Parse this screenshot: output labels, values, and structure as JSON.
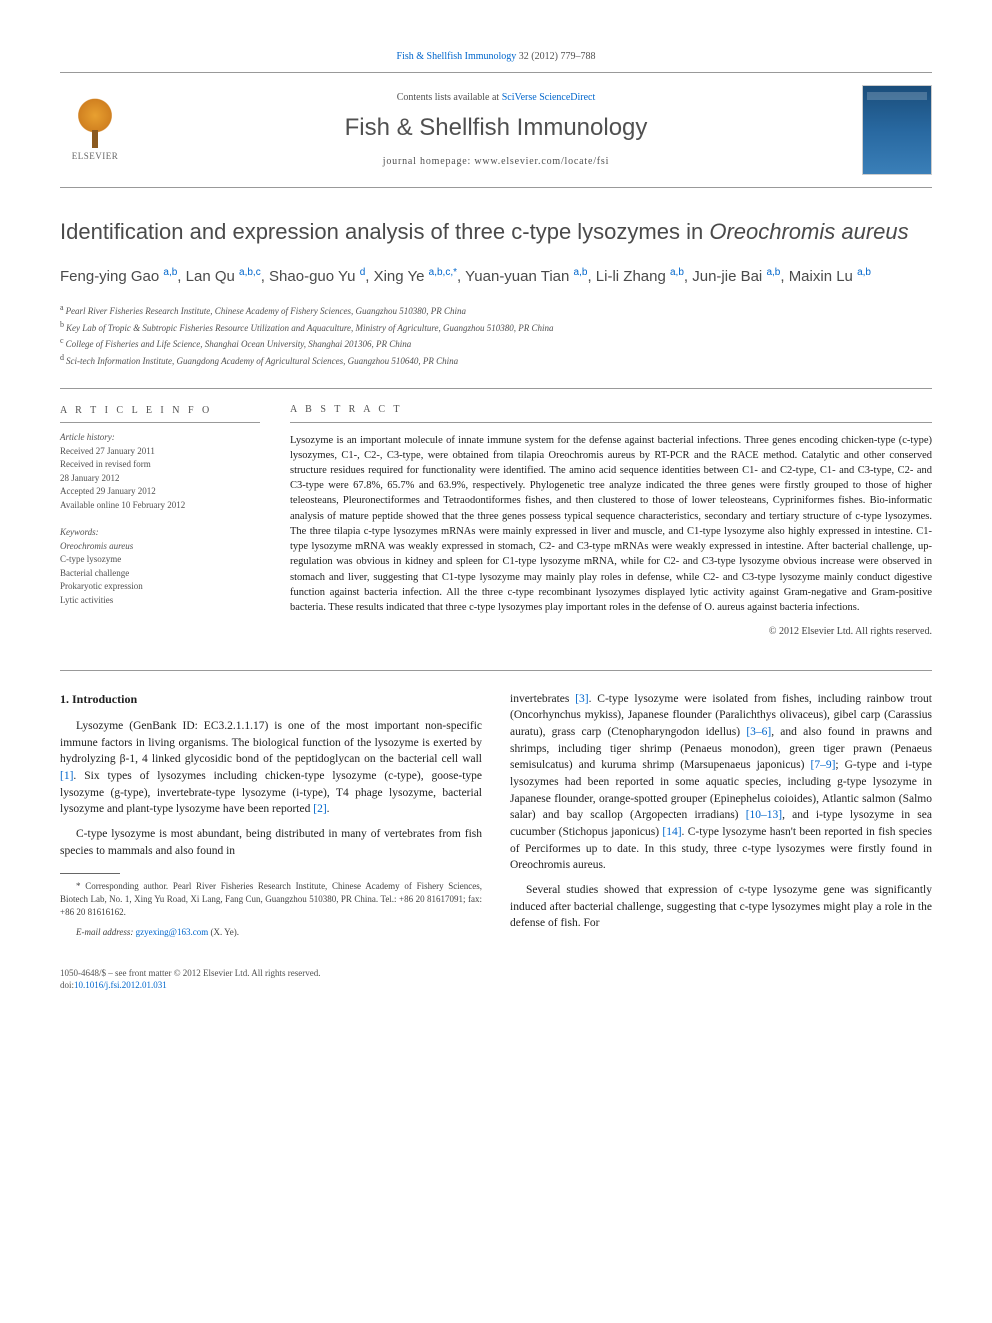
{
  "citation": {
    "journal_link": "Fish & Shellfish Immunology",
    "vol_pages": " 32 (2012) 779–788"
  },
  "header": {
    "contents_prefix": "Contents lists available at ",
    "contents_link": "SciVerse ScienceDirect",
    "journal_title": "Fish & Shellfish Immunology",
    "homepage_label": "journal homepage: www.elsevier.com/locate/fsi",
    "publisher": "ELSEVIER"
  },
  "article": {
    "title_plain": "Identification and expression analysis of three c-type lysozymes in ",
    "title_italic": "Oreochromis aureus"
  },
  "authors": [
    {
      "name": "Feng-ying Gao",
      "aff": "a,b"
    },
    {
      "name": "Lan Qu",
      "aff": "a,b,c"
    },
    {
      "name": "Shao-guo Yu",
      "aff": "d"
    },
    {
      "name": "Xing Ye",
      "aff": "a,b,c,",
      "star": true
    },
    {
      "name": "Yuan-yuan Tian",
      "aff": "a,b"
    },
    {
      "name": "Li-li Zhang",
      "aff": "a,b"
    },
    {
      "name": "Jun-jie Bai",
      "aff": "a,b"
    },
    {
      "name": "Maixin Lu",
      "aff": "a,b"
    }
  ],
  "affiliations": [
    {
      "key": "a",
      "text": "Pearl River Fisheries Research Institute, Chinese Academy of Fishery Sciences, Guangzhou 510380, PR China"
    },
    {
      "key": "b",
      "text": "Key Lab of Tropic & Subtropic Fisheries Resource Utilization and Aquaculture, Ministry of Agriculture, Guangzhou 510380, PR China"
    },
    {
      "key": "c",
      "text": "College of Fisheries and Life Science, Shanghai Ocean University, Shanghai 201306, PR China"
    },
    {
      "key": "d",
      "text": "Sci-tech Information Institute, Guangdong Academy of Agricultural Sciences, Guangzhou 510640, PR China"
    }
  ],
  "info": {
    "header": "A R T I C L E   I N F O",
    "history_label": "Article history:",
    "received": "Received 27 January 2011",
    "revised": "Received in revised form",
    "revised_date": "28 January 2012",
    "accepted": "Accepted 29 January 2012",
    "online": "Available online 10 February 2012",
    "keywords_label": "Keywords:",
    "keywords": [
      "Oreochromis aureus",
      "C-type lysozyme",
      "Bacterial challenge",
      "Prokaryotic expression",
      "Lytic activities"
    ]
  },
  "abstract": {
    "header": "A B S T R A C T",
    "text": "Lysozyme is an important molecule of innate immune system for the defense against bacterial infections. Three genes encoding chicken-type (c-type) lysozymes, C1-, C2-, C3-type, were obtained from tilapia Oreochromis aureus by RT-PCR and the RACE method. Catalytic and other conserved structure residues required for functionality were identified. The amino acid sequence identities between C1- and C2-type, C1- and C3-type, C2- and C3-type were 67.8%, 65.7% and 63.9%, respectively. Phylogenetic tree analyze indicated the three genes were firstly grouped to those of higher teleosteans, Pleuronectiformes and Tetraodontiformes fishes, and then clustered to those of lower teleosteans, Cypriniformes fishes. Bio-informatic analysis of mature peptide showed that the three genes possess typical sequence characteristics, secondary and tertiary structure of c-type lysozymes. The three tilapia c-type lysozymes mRNAs were mainly expressed in liver and muscle, and C1-type lysozyme also highly expressed in intestine. C1-type lysozyme mRNA was weakly expressed in stomach, C2- and C3-type mRNAs were weakly expressed in intestine. After bacterial challenge, up-regulation was obvious in kidney and spleen for C1-type lysozyme mRNA, while for C2- and C3-type lysozyme obvious increase were observed in stomach and liver, suggesting that C1-type lysozyme may mainly play roles in defense, while C2- and C3-type lysozyme mainly conduct digestive function against bacteria infection. All the three c-type recombinant lysozymes displayed lytic activity against Gram-negative and Gram-positive bacteria. These results indicated that three c-type lysozymes play important roles in the defense of O. aureus against bacteria infections.",
    "copyright": "© 2012 Elsevier Ltd. All rights reserved."
  },
  "body": {
    "section_title": "1. Introduction",
    "p1_a": "Lysozyme (GenBank ID: EC3.2.1.1.17) is one of the most important non-specific immune factors in living organisms. The biological function of the lysozyme is exerted by hydrolyzing β-1, 4 linked glycosidic bond of the peptidoglycan on the bacterial cell wall ",
    "p1_ref1": "[1]",
    "p1_b": ". Six types of lysozymes including chicken-type lysozyme (c-type), goose-type lysozyme (g-type), invertebrate-type lysozyme (i-type), T4 phage lysozyme, bacterial lysozyme and plant-type lysozyme have been reported ",
    "p1_ref2": "[2]",
    "p1_c": ".",
    "p2": "C-type lysozyme is most abundant, being distributed in many of vertebrates from fish species to mammals and also found in",
    "col2_a": "invertebrates ",
    "col2_ref3": "[3]",
    "col2_b": ". C-type lysozyme were isolated from fishes, including rainbow trout (Oncorhynchus mykiss), Japanese flounder (Paralichthys olivaceus), gibel carp (Carassius auratu), grass carp (Ctenopharyngodon idellus) ",
    "col2_ref36": "[3–6]",
    "col2_c": ", and also found in prawns and shrimps, including tiger shrimp (Penaeus monodon), green tiger prawn (Penaeus semisulcatus) and kuruma shrimp (Marsupenaeus japonicus) ",
    "col2_ref79": "[7–9]",
    "col2_d": "; G-type and i-type lysozymes had been reported in some aquatic species, including g-type lysozyme in Japanese flounder, orange-spotted grouper (Epinephelus coioides), Atlantic salmon (Salmo salar) and bay scallop (Argopecten irradians) ",
    "col2_ref1013": "[10–13]",
    "col2_e": ", and i-type lysozyme in sea cucumber (Stichopus japonicus) ",
    "col2_ref14": "[14]",
    "col2_f": ". C-type lysozyme hasn't been reported in fish species of Perciformes up to date. In this study, three c-type lysozymes were firstly found in Oreochromis aureus.",
    "col2_p2": "Several studies showed that expression of c-type lysozyme gene was significantly induced after bacterial challenge, suggesting that c-type lysozymes might play a role in the defense of fish. For"
  },
  "footnote": {
    "star": "*",
    "corresponding": " Corresponding author. Pearl River Fisheries Research Institute, Chinese Academy of Fishery Sciences, Biotech Lab, No. 1, Xing Yu Road, Xi Lang, Fang Cun, Guangzhou 510380, PR China. Tel.: +86 20 81617091; fax: +86 20 81616162.",
    "email_label": "E-mail address: ",
    "email": "gzyexing@163.com",
    "email_suffix": " (X. Ye)."
  },
  "bottom": {
    "issn": "1050-4648/$ – see front matter © 2012 Elsevier Ltd. All rights reserved.",
    "doi_label": "doi:",
    "doi": "10.1016/j.fsi.2012.01.031"
  },
  "colors": {
    "link": "#0066cc",
    "text_gray": "#505050",
    "heading_gray": "#4a4a4a"
  }
}
